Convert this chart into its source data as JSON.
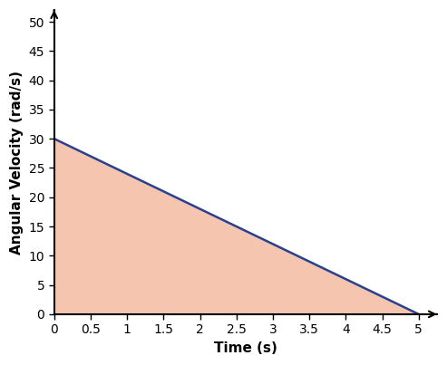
{
  "x": [
    0,
    5
  ],
  "y": [
    30,
    0
  ],
  "fill_color": "#f5c5b0",
  "line_color": "#2b3f8c",
  "line_width": 1.8,
  "xlabel": "Time (s)",
  "ylabel": "Angular Velocity (rad/s)",
  "xlim": [
    0,
    5.25
  ],
  "ylim": [
    0,
    52
  ],
  "xticks": [
    0,
    0.5,
    1,
    1.5,
    2,
    2.5,
    3,
    3.5,
    4,
    4.5,
    5
  ],
  "yticks": [
    0,
    5,
    10,
    15,
    20,
    25,
    30,
    35,
    40,
    45,
    50
  ],
  "xlabel_fontsize": 11,
  "ylabel_fontsize": 11,
  "tick_fontsize": 9,
  "background_color": "#ffffff"
}
